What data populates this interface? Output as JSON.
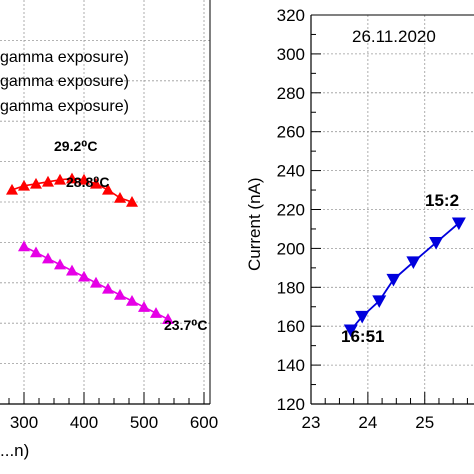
{
  "chart_data": [
    {
      "type": "scatter",
      "xlabel": "...n)",
      "ylabel": "",
      "xlim": [
        260,
        610
      ],
      "ylim": [
        0,
        10
      ],
      "x_ticks": [
        300,
        400,
        500,
        600
      ],
      "legend": {
        "placement": "top-left",
        "entries": [
          "gamma exposure)",
          "gamma exposure)",
          "gamma exposure)"
        ]
      },
      "grid": true,
      "series": [
        {
          "color": "#ff0000",
          "marker": "triangle-up",
          "x": [
            280,
            300,
            320,
            340,
            360,
            380,
            400,
            420,
            440,
            460,
            480
          ],
          "y": [
            5.3,
            5.4,
            5.45,
            5.5,
            5.55,
            5.58,
            5.55,
            5.45,
            5.3,
            5.1,
            5.0
          ]
        },
        {
          "color": "#e600e6",
          "marker": "triangle-up",
          "x": [
            300,
            320,
            340,
            360,
            380,
            400,
            420,
            440,
            460,
            480,
            500,
            520,
            540
          ],
          "y": [
            3.9,
            3.75,
            3.6,
            3.45,
            3.3,
            3.15,
            3.0,
            2.85,
            2.7,
            2.55,
            2.4,
            2.25,
            2.1
          ]
        }
      ],
      "annotations": [
        "29.2⁰C",
        "28.8⁰C",
        "23.7⁰C"
      ]
    },
    {
      "type": "line",
      "title": "26.11.2020",
      "ylabel": "Current (nA)",
      "xlabel": "",
      "xlim": [
        23,
        26.2
      ],
      "ylim": [
        120,
        320
      ],
      "x_ticks": [
        23,
        24,
        25
      ],
      "y_ticks": [
        120,
        140,
        160,
        180,
        200,
        220,
        240,
        260,
        280,
        300,
        320
      ],
      "grid": true,
      "series": [
        {
          "color": "#0000dd",
          "marker": "triangle-down",
          "x": [
            23.7,
            23.9,
            24.2,
            24.45,
            24.8,
            25.2,
            25.6
          ],
          "y": [
            158,
            165,
            173,
            184,
            193,
            203,
            213
          ]
        }
      ],
      "annotations": [
        "16:51",
        "15:2"
      ]
    }
  ]
}
